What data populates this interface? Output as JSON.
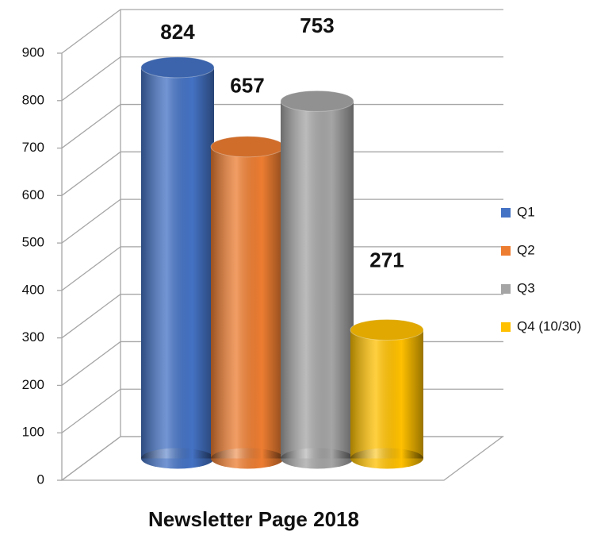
{
  "chart_data": {
    "type": "bar",
    "categories": [
      "Newsletter Page 2018"
    ],
    "series": [
      {
        "name": "Q1",
        "color": "#4472c4",
        "values": [
          824
        ]
      },
      {
        "name": "Q2",
        "color": "#ed7d31",
        "values": [
          657
        ]
      },
      {
        "name": "Q3",
        "color": "#a5a5a5",
        "values": [
          753
        ]
      },
      {
        "name": "Q4 (10/30)",
        "color": "#ffc000",
        "values": [
          271
        ]
      }
    ],
    "ylim": [
      0,
      900
    ],
    "yticks": [
      0,
      100,
      200,
      300,
      400,
      500,
      600,
      700,
      800,
      900
    ],
    "grid": true,
    "legend": "right"
  }
}
